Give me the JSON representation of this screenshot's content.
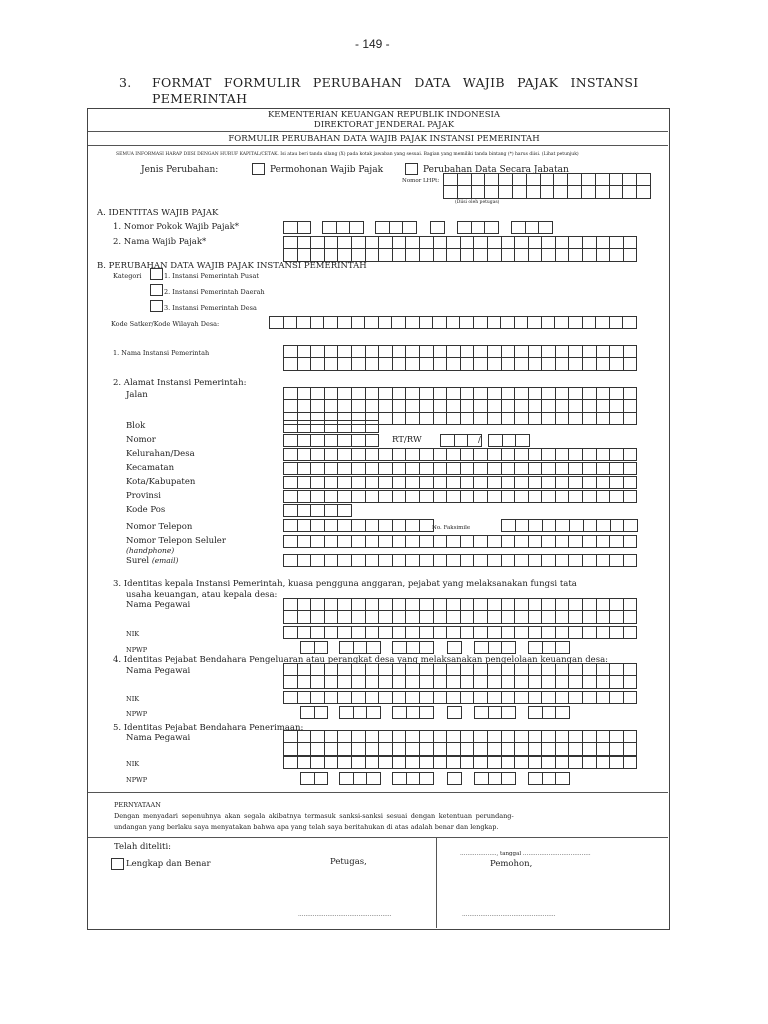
{
  "page_number": "- 149 -",
  "heading": {
    "number": "3.",
    "line1": "FORMAT FORMULIR PERUBAHAN DATA WAJIB PAJAK INSTANSI",
    "line2": "PEMERINTAH"
  },
  "form": {
    "ministry": "KEMENTERIAN KEUANGAN REPUBLIK INDONESIA",
    "directorate": "DIREKTORAT JENDERAL PAJAK",
    "title": "FORMULIR PERUBAHAN DATA WAJIB PAJAK INSTANSI PEMERINTAH",
    "instructions": "SEMUA INFORMASI HARAP DIISI DENGAN HURUF KAPITAL/CETAK. Isi atau beri tanda silang (X) pada kotak jawaban yang sesuai. Bagian yang memiliki tanda bintang (*) harus diisi. (Lihat petunjuk)",
    "jenis_perubahan": {
      "label": "Jenis Perubahan:",
      "option1": "Permohonan Wajib Pajak",
      "option2": "Perubahan Data Secara Jabatan",
      "lhpt_label": "Nomor LHPt:",
      "lhpt_note": "(Diisi oleh petugas)"
    },
    "section_a": {
      "title": "A. IDENTITAS WAJIB PAJAK",
      "npwp": "1. Nomor Pokok Wajib Pajak*",
      "nama": "2. Nama Wajib Pajak*"
    },
    "section_b": {
      "title": "B. PERUBAHAN DATA WAJIB PAJAK INSTANSI PEMERINTAH",
      "kategori": "Kategori",
      "kategori_options": [
        "1. Instansi Pemerintah Pusat",
        "2. Instansi Pemerintah Daerah",
        "3. Instansi Pemerintah Desa"
      ],
      "kode_satker": "Kode Satker/Kode Wilayah Desa:",
      "nama_instansi": "1.  Nama Instansi Pemerintah",
      "alamat": "2.  Alamat Instansi Pemerintah:",
      "jalan": "Jalan",
      "blok": "Blok",
      "nomor": "Nomor",
      "rtrw": "RT/RW",
      "slash": "/",
      "kelurahan": "Kelurahan/Desa",
      "kecamatan": "Kecamatan",
      "kota": "Kota/Kabupaten",
      "provinsi": "Provinsi",
      "kode_pos": "Kode Pos",
      "telepon": "Nomor Telepon",
      "faksimile": "No. Faksimile",
      "seluler": "Nomor Telepon Seluler",
      "handphone": "(handphone)",
      "surel": "Surel",
      "email": "(email)",
      "item3_line1": "3.  Identitas  kepala Instansi Pemerintah,  kuasa pengguna anggaran, pejabat yang melaksanakan fungsi tata",
      "item3_line2": "usaha keuangan, atau kepala desa:",
      "item4": "4.  Identitas Pejabat Bendahara Pengeluaran atau perangkat desa yang melaksanakan pengelolaan keuangan desa:",
      "item5": "5.  Identitas Pejabat Bendahara Penerimaan:",
      "nama_pegawai": "Nama Pegawai",
      "nik": "NIK",
      "npwp": "NPWP"
    },
    "pernyataan": {
      "title": "PERNYATAAN",
      "line1": "Dengan menyadari sepenuhnya akan segala akibatnya termasuk sanksi-sanksi sesuai dengan ketentuan perundang-",
      "line2": "undangan yang berlaku saya menyatakan bahwa apa yang telah saya beritahukan di atas adalah benar dan lengkap."
    },
    "footer": {
      "telah_diteliti": "Telah diteliti:",
      "lengkap": "Lengkap dan Benar",
      "petugas": "Petugas,",
      "tanggal": "……………….., tanggal ……………………………….",
      "pemohon": "Pemohon,",
      "sign_line": "……………………………………………"
    }
  }
}
